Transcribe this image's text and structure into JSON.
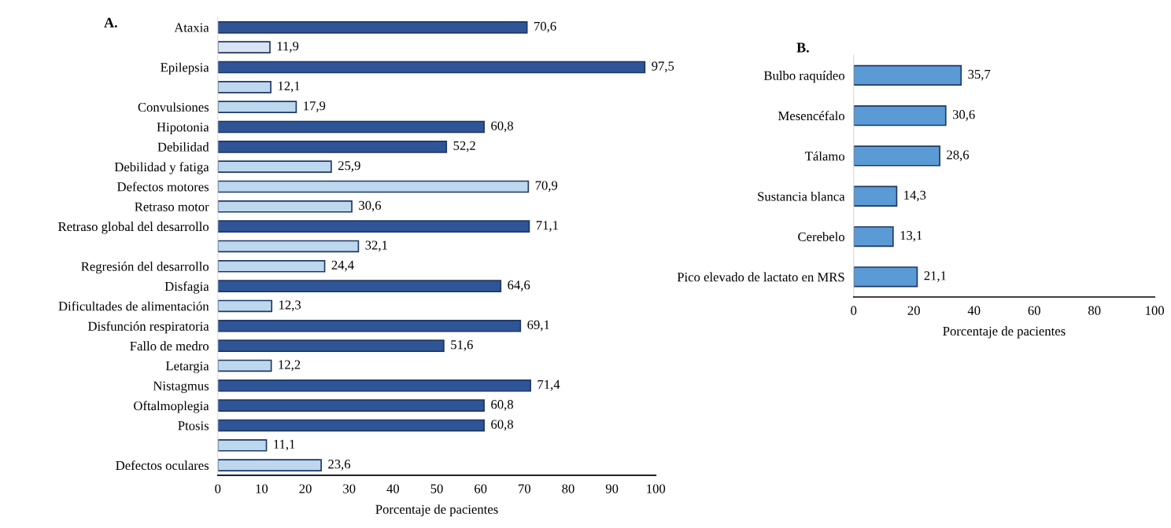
{
  "chart_data": [
    {
      "type": "bar",
      "title": "A.",
      "orientation": "horizontal",
      "xlabel": "Porcentaje de pacientes",
      "categories": [
        "Ataxia",
        null,
        "Epilepsia",
        null,
        "Convulsiones",
        "Hipotonia",
        "Debilidad",
        "Debilidad y fatiga",
        "Defectos motores",
        "Retraso motor",
        "Retraso global del desarrollo",
        null,
        "Regresión del desarrollo",
        "Disfagia",
        "Dificultades de alimentación",
        "Disfunción respiratoria",
        "Fallo de medro",
        "Letargia",
        "Nistagmus",
        "Oftalmoplegia",
        "Ptosis",
        null,
        "Defectos oculares"
      ],
      "values": [
        70.6,
        11.9,
        97.5,
        12.1,
        17.9,
        60.8,
        52.2,
        25.9,
        70.9,
        30.6,
        71.1,
        32.1,
        24.4,
        64.6,
        12.3,
        69.1,
        51.6,
        12.2,
        71.4,
        60.8,
        60.8,
        11.1,
        23.6
      ],
      "value_labels": [
        "70,6",
        "11,9",
        "97,5",
        "12,1",
        "17,9",
        "60,8",
        "52,2",
        "25,9",
        "70,9",
        "30,6",
        "71,1",
        "32,1",
        "24,4",
        "64,6",
        "12,3",
        "69,1",
        "51,6",
        "12,2",
        "71,4",
        "60,8",
        "60,8",
        "11,1",
        "23,6"
      ],
      "colors": [
        "#2f5597",
        "#dae3f3",
        "#2f5597",
        "#bdd7ee",
        "#bdd7ee",
        "#2f5597",
        "#2f5597",
        "#bdd7ee",
        "#bdd7ee",
        "#bdd7ee",
        "#2f5597",
        "#bdd7ee",
        "#bdd7ee",
        "#2f5597",
        "#bdd7ee",
        "#2f5597",
        "#2f5597",
        "#bdd7ee",
        "#2f5597",
        "#2f5597",
        "#2f5597",
        "#bdd7ee",
        "#bdd7ee"
      ],
      "xlim": [
        0,
        100
      ],
      "xticks": [
        0,
        10,
        20,
        30,
        40,
        50,
        60,
        70,
        80,
        90,
        100
      ],
      "grid": false,
      "legend": false
    },
    {
      "type": "bar",
      "title": "B.",
      "orientation": "horizontal",
      "xlabel": "Porcentaje de pacientes",
      "categories": [
        "Bulbo raquídeo",
        "Mesencéfalo",
        "Tálamo",
        "Sustancia blanca",
        "Cerebelo",
        "Pico elevado de lactato en MRS"
      ],
      "values": [
        35.7,
        30.6,
        28.6,
        14.3,
        13.1,
        21.1
      ],
      "value_labels": [
        "35,7",
        "30,6",
        "28,6",
        "14,3",
        "13,1",
        "21,1"
      ],
      "colors": [
        "#5b9bd5",
        "#5b9bd5",
        "#5b9bd5",
        "#5b9bd5",
        "#5b9bd5",
        "#5b9bd5"
      ],
      "xlim": [
        0,
        100
      ],
      "xticks": [
        0,
        20,
        40,
        60,
        80,
        100
      ],
      "grid": false,
      "legend": false
    }
  ]
}
